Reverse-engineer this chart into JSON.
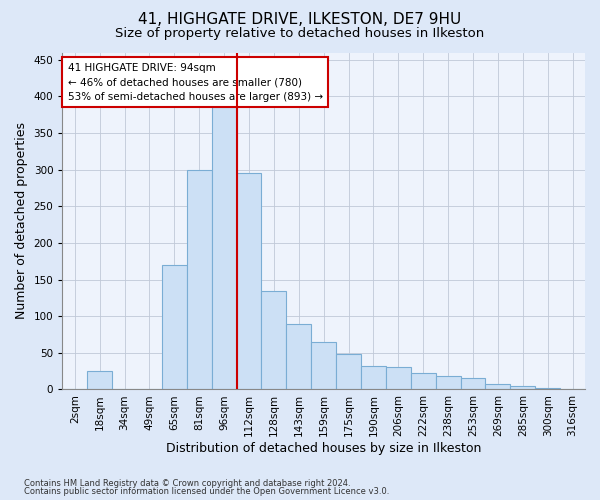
{
  "title1": "41, HIGHGATE DRIVE, ILKESTON, DE7 9HU",
  "title2": "Size of property relative to detached houses in Ilkeston",
  "xlabel": "Distribution of detached houses by size in Ilkeston",
  "ylabel": "Number of detached properties",
  "categories": [
    "2sqm",
    "18sqm",
    "34sqm",
    "49sqm",
    "65sqm",
    "81sqm",
    "96sqm",
    "112sqm",
    "128sqm",
    "143sqm",
    "159sqm",
    "175sqm",
    "190sqm",
    "206sqm",
    "222sqm",
    "238sqm",
    "253sqm",
    "269sqm",
    "285sqm",
    "300sqm",
    "316sqm"
  ],
  "bar_heights": [
    0,
    25,
    0,
    0,
    170,
    300,
    385,
    295,
    135,
    90,
    65,
    48,
    32,
    30,
    22,
    18,
    15,
    8,
    5,
    2,
    0
  ],
  "bar_color": "#cce0f5",
  "bar_edge_color": "#7aadd4",
  "vline_x_index": 6,
  "vline_color": "#cc0000",
  "annotation_text": "41 HIGHGATE DRIVE: 94sqm\n← 46% of detached houses are smaller (780)\n53% of semi-detached houses are larger (893) →",
  "annotation_box_edge": "#cc0000",
  "ylim": [
    0,
    460
  ],
  "yticks": [
    0,
    50,
    100,
    150,
    200,
    250,
    300,
    350,
    400,
    450
  ],
  "footer1": "Contains HM Land Registry data © Crown copyright and database right 2024.",
  "footer2": "Contains public sector information licensed under the Open Government Licence v3.0.",
  "bg_color": "#dde8f8",
  "plot_bg_color": "#eef3fc",
  "grid_color": "#c0c8d8",
  "title1_fontsize": 11,
  "title2_fontsize": 9.5,
  "tick_fontsize": 7.5,
  "xlabel_fontsize": 9,
  "ylabel_fontsize": 9
}
